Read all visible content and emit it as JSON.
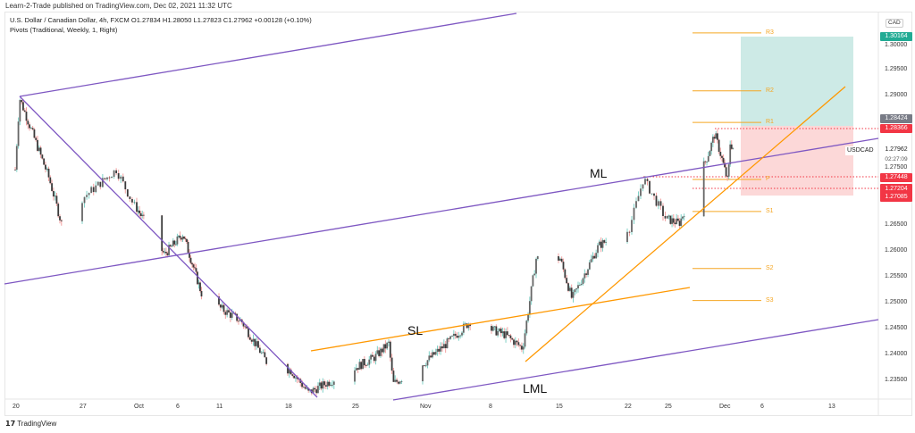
{
  "header": {
    "published": "Learn-2-Trade published on TradingView.com, Dec 02, 2021 11:32 UTC",
    "symbol_line": "U.S. Dollar / Canadian Dollar, 4h, FXCM  O1.27834  H1.28050  L1.27823  C1.27962  +0.00128 (+0.10%)",
    "indicator": "Pivots (Traditional, Weekly, 1, Right)"
  },
  "price_axis": {
    "currency": "CAD",
    "ticks": [
      "1.30000",
      "1.29500",
      "1.29000",
      "1.27500",
      "1.26500",
      "1.26000",
      "1.25500",
      "1.25000",
      "1.24500",
      "1.24000",
      "1.23500"
    ],
    "labels": {
      "target": "1.30164",
      "r1_label": "1.28424",
      "entry": "1.28366",
      "current": "1.27962",
      "countdown": "02:27:09",
      "level1": "1.27448",
      "level2": "1.27204",
      "stop": "1.27085"
    },
    "symbol_tag": "USDCAD"
  },
  "time_axis": {
    "ticks": [
      {
        "label": "20",
        "date": "2021-09-20"
      },
      {
        "label": "27",
        "date": "2021-09-27"
      },
      {
        "label": "Oct",
        "date": "2021-10-01"
      },
      {
        "label": "6",
        "date": "2021-10-06"
      },
      {
        "label": "11",
        "date": "2021-10-11"
      },
      {
        "label": "18",
        "date": "2021-10-18"
      },
      {
        "label": "25",
        "date": "2021-10-25"
      },
      {
        "label": "Nov",
        "date": "2021-11-01"
      },
      {
        "label": "8",
        "date": "2021-11-08"
      },
      {
        "label": "15",
        "date": "2021-11-15"
      },
      {
        "label": "22",
        "date": "2021-11-22"
      },
      {
        "label": "25",
        "date": "2021-11-25"
      },
      {
        "label": "Dec",
        "date": "2021-12-01"
      },
      {
        "label": "6",
        "date": "2021-12-06"
      },
      {
        "label": "13",
        "date": "2021-12-13"
      }
    ]
  },
  "pivots": [
    {
      "name": "R3",
      "price": 1.3021
    },
    {
      "name": "R2",
      "price": 1.2909
    },
    {
      "name": "R1",
      "price": 1.2848
    },
    {
      "name": "P",
      "price": 1.2738
    },
    {
      "name": "S1",
      "price": 1.2676
    },
    {
      "name": "S2",
      "price": 1.2566
    },
    {
      "name": "S3",
      "price": 1.2504
    }
  ],
  "annotations": {
    "ml": "ML",
    "sl": "SL",
    "lml": "LML"
  },
  "colors": {
    "up_wick": "#7fd0c6",
    "down_wick": "#f2a0a0",
    "body": "#3a3a3a",
    "pitchfork": "#7e57c2",
    "trend": "#ff9800",
    "pivot": "#f5a623",
    "target_zone": "#cdeae6",
    "stop_zone": "#fcd8d8",
    "red_label": "#f23645",
    "teal_label": "#22ab94"
  },
  "chart_data": {
    "type": "candlestick",
    "timeframe": "4h",
    "ylim": [
      1.2325,
      1.306
    ],
    "close_path": [
      [
        "2021-09-20T00",
        1.2757
      ],
      [
        "2021-09-20T11",
        1.2895
      ],
      [
        "2021-09-23T13",
        1.274
      ],
      [
        "2021-09-24T20",
        1.2653
      ],
      [
        "2021-09-29T12",
        1.2757
      ],
      [
        "2021-09-30T19",
        1.2688
      ],
      [
        "2021-10-04T07",
        1.2593
      ],
      [
        "2021-10-06T13",
        1.2633
      ],
      [
        "2021-10-08T21",
        1.2516
      ],
      [
        "2021-10-13T07",
        1.2464
      ],
      [
        "2021-10-15T20",
        1.2386
      ],
      [
        "2021-10-18T08",
        1.2369
      ],
      [
        "2021-10-20T04",
        1.2326
      ],
      [
        "2021-10-22T20",
        1.2352
      ],
      [
        "2021-10-27T02",
        1.2395
      ],
      [
        "2021-10-28T12",
        1.2421
      ],
      [
        "2021-10-28T23",
        1.2343
      ],
      [
        "2021-11-01T08",
        1.2386
      ],
      [
        "2021-11-03T22",
        1.2429
      ],
      [
        "2021-11-05T20",
        1.2464
      ],
      [
        "2021-11-09T10",
        1.2438
      ],
      [
        "2021-11-11T06",
        1.2412
      ],
      [
        "2021-11-12T16",
        1.2585
      ],
      [
        "2021-11-15T04",
        1.2585
      ],
      [
        "2021-11-16T09",
        1.2507
      ],
      [
        "2021-11-19T02",
        1.261
      ],
      [
        "2021-11-22T04",
        1.2645
      ],
      [
        "2021-11-23T05",
        1.274
      ],
      [
        "2021-11-24T21",
        1.2662
      ],
      [
        "2021-11-26T07",
        1.2653
      ],
      [
        "2021-11-29T10",
        1.2783
      ],
      [
        "2021-11-30T05",
        1.2826
      ],
      [
        "2021-12-01T18",
        1.2731
      ],
      [
        "2021-12-01T23",
        1.2809
      ],
      [
        "2021-12-02T11",
        1.2796
      ]
    ]
  }
}
